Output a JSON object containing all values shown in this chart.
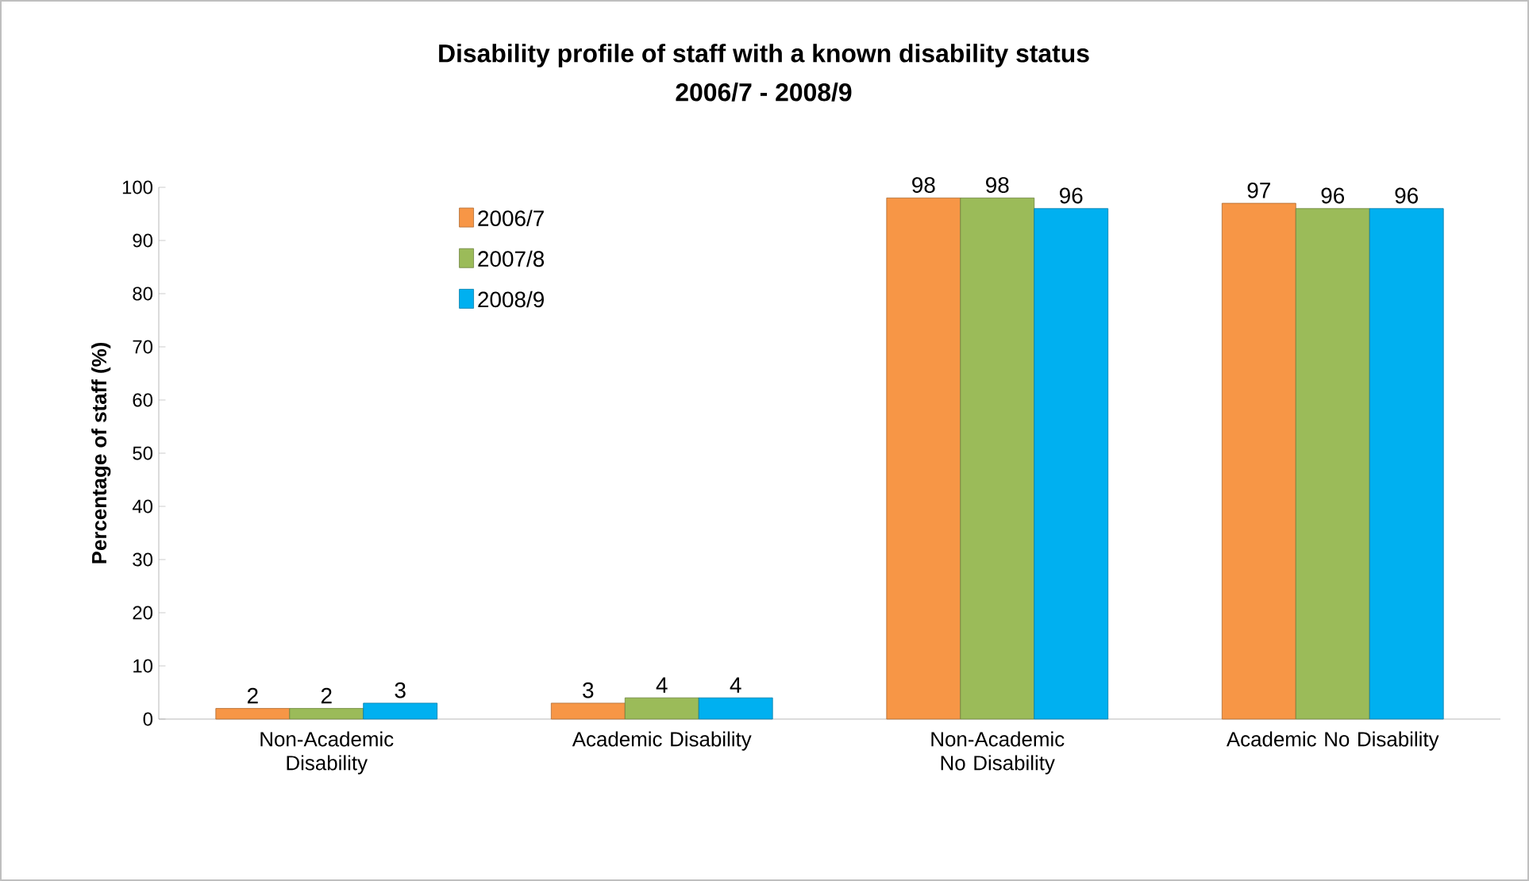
{
  "chart_data": {
    "type": "bar",
    "title": "Disability profile of staff with a known disability status",
    "subtitle": "2006/7 - 2008/9",
    "ylabel": "Percentage of staff (%)",
    "categories": [
      "Non-Academic Disability",
      "Academic Disability",
      "Non-Academic No Disability",
      "Academic No Disability"
    ],
    "series": [
      {
        "name": "2006/7",
        "color": "#f79646",
        "values": [
          2,
          3,
          98,
          97
        ]
      },
      {
        "name": "2007/8",
        "color": "#9bbb59",
        "values": [
          2,
          4,
          98,
          96
        ]
      },
      {
        "name": "2008/9",
        "color": "#00b0f0",
        "values": [
          3,
          4,
          96,
          96
        ]
      }
    ],
    "ylim": [
      0,
      100
    ],
    "yticks": [
      0,
      10,
      20,
      30,
      40,
      50,
      60,
      70,
      80,
      90,
      100
    ],
    "data_labels": true,
    "legend": "top left",
    "grid": false
  }
}
